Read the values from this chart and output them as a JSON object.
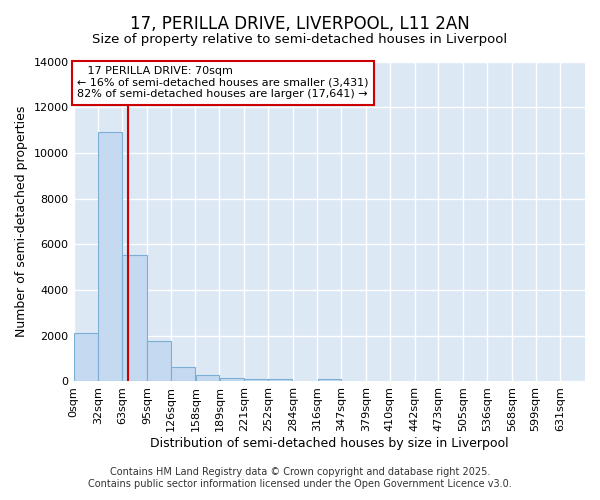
{
  "title": "17, PERILLA DRIVE, LIVERPOOL, L11 2AN",
  "subtitle": "Size of property relative to semi-detached houses in Liverpool",
  "xlabel": "Distribution of semi-detached houses by size in Liverpool",
  "ylabel": "Number of semi-detached properties",
  "bar_color": "#c5d9f0",
  "bar_edge_color": "#7bafd4",
  "annotation_line_color": "#cc0000",
  "annotation_box_color": "#cc0000",
  "background_color": "#ffffff",
  "plot_bg_color": "#dde8f5",
  "grid_color": "#ffffff",
  "categories": [
    "0sqm",
    "32sqm",
    "63sqm",
    "95sqm",
    "126sqm",
    "158sqm",
    "189sqm",
    "221sqm",
    "252sqm",
    "284sqm",
    "316sqm",
    "347sqm",
    "379sqm",
    "410sqm",
    "442sqm",
    "473sqm",
    "505sqm",
    "536sqm",
    "568sqm",
    "599sqm",
    "631sqm"
  ],
  "bin_edges": [
    0,
    32,
    63,
    95,
    126,
    158,
    189,
    221,
    252,
    284,
    316,
    347,
    379,
    410,
    442,
    473,
    505,
    536,
    568,
    599,
    631
  ],
  "values": [
    2100,
    10900,
    5550,
    1750,
    650,
    290,
    140,
    100,
    100,
    0,
    100,
    0,
    0,
    0,
    0,
    0,
    0,
    0,
    0,
    0
  ],
  "ylim": [
    0,
    14000
  ],
  "property_size": 70,
  "property_label": "17 PERILLA DRIVE: 70sqm",
  "pct_smaller": 16,
  "pct_larger": 82,
  "count_smaller": 3431,
  "count_larger": 17641,
  "footer_line1": "Contains HM Land Registry data © Crown copyright and database right 2025.",
  "footer_line2": "Contains public sector information licensed under the Open Government Licence v3.0.",
  "title_fontsize": 12,
  "subtitle_fontsize": 9.5,
  "axis_label_fontsize": 9,
  "tick_fontsize": 8,
  "annotation_fontsize": 8,
  "footer_fontsize": 7
}
